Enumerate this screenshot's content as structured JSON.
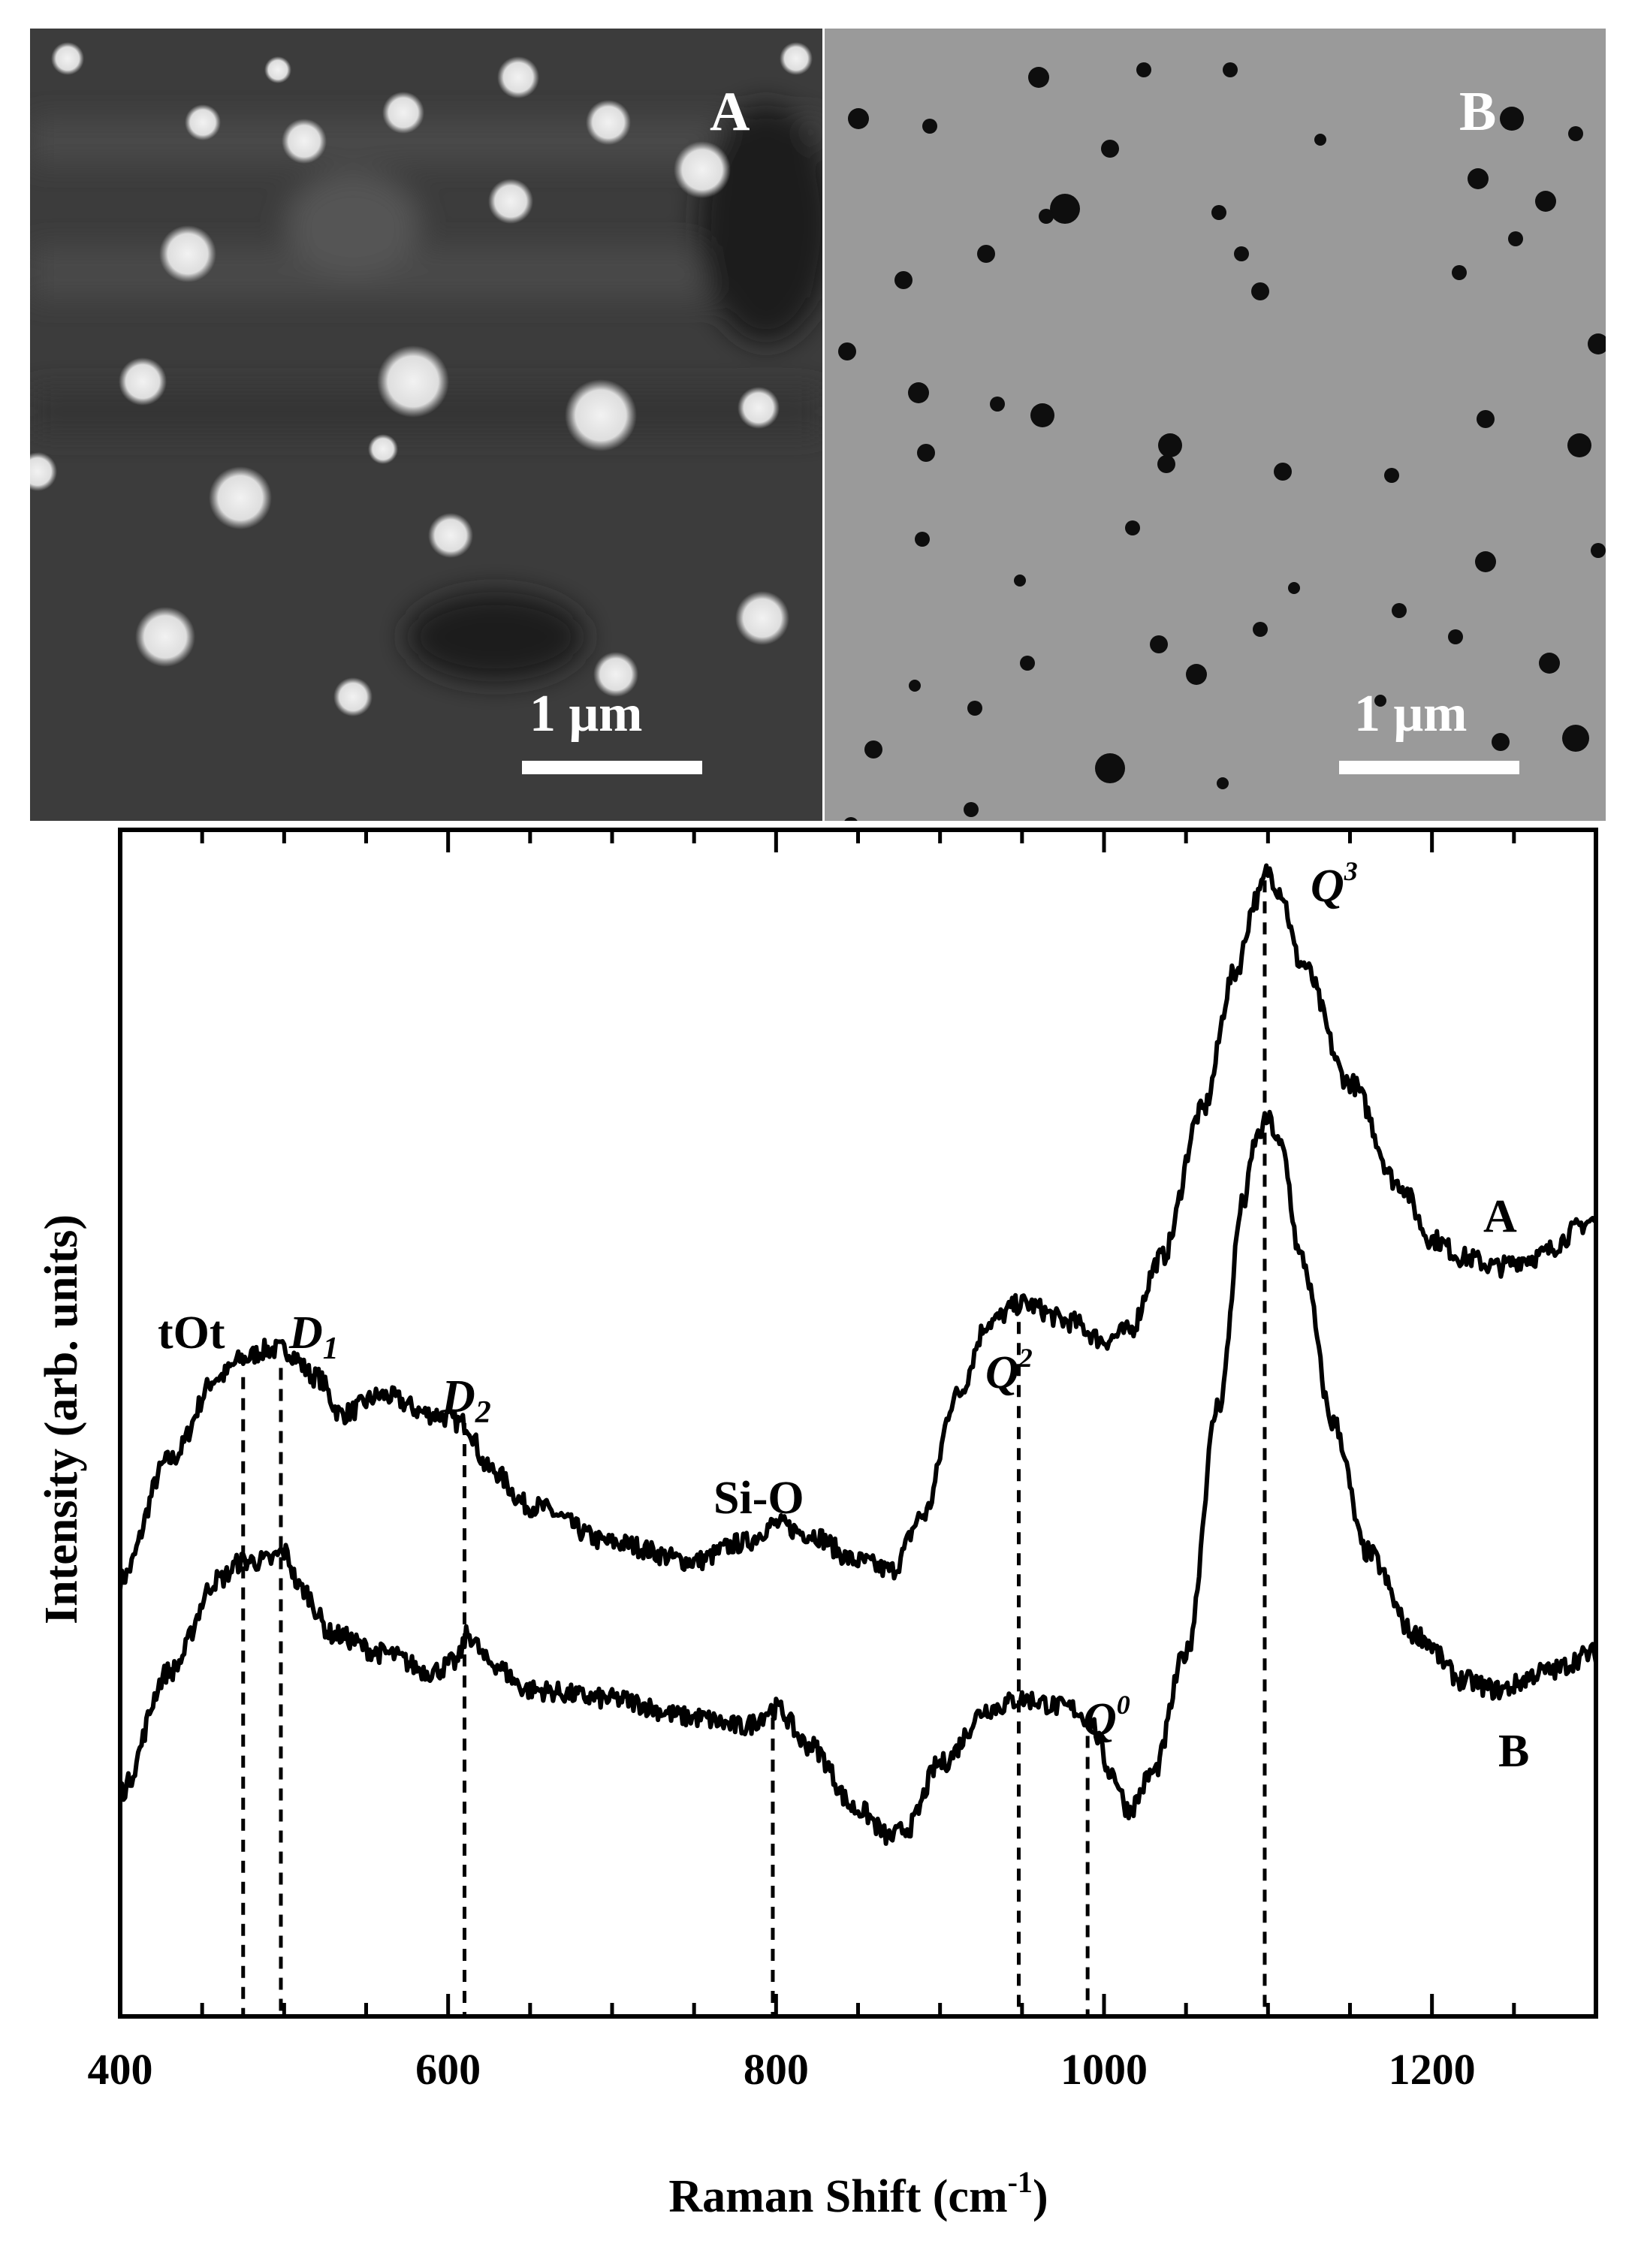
{
  "micrographs": [
    {
      "label": "A",
      "scale_bar": "1 μm",
      "contrast": "bright particles on dark background"
    },
    {
      "label": "B",
      "scale_bar": "1 μm",
      "contrast": "dark particles on light background"
    }
  ],
  "colors": {
    "panel_a_bg": "#3c3c3c",
    "panel_a_particle": "#e4e4e4",
    "panel_b_bg": "#9a9a9a",
    "panel_b_particle": "#0e0e0e",
    "line": "#000000"
  },
  "chart_data": {
    "type": "line",
    "xlabel": "Raman Shift (cm",
    "xlabel_sup": "-1",
    "xlabel_close": ")",
    "ylabel": "Intensity (arb. units)",
    "xlim": [
      400,
      1300
    ],
    "ylim": [
      0,
      1
    ],
    "x_ticks": [
      400,
      600,
      800,
      1000,
      1200
    ],
    "x_tick_labels": [
      "400",
      "600",
      "800",
      "1000",
      "1200"
    ],
    "grid": false,
    "series": [
      {
        "name": "A",
        "x": [
          400,
          430,
          460,
          475,
          490,
          500,
          520,
          535,
          560,
          590,
          610,
          625,
          650,
          700,
          750,
          780,
          800,
          820,
          850,
          870,
          890,
          910,
          930,
          950,
          980,
          1000,
          1015,
          1035,
          1060,
          1080,
          1093,
          1100,
          1107,
          1120,
          1150,
          1180,
          1200,
          1220,
          1240,
          1260,
          1300
        ],
        "y": [
          0.23,
          0.36,
          0.45,
          0.47,
          0.48,
          0.48,
          0.45,
          0.41,
          0.43,
          0.41,
          0.4,
          0.35,
          0.31,
          0.27,
          0.25,
          0.27,
          0.29,
          0.28,
          0.25,
          0.24,
          0.3,
          0.43,
          0.51,
          0.53,
          0.51,
          0.49,
          0.5,
          0.58,
          0.74,
          0.89,
          0.97,
          1.0,
          0.98,
          0.9,
          0.77,
          0.66,
          0.6,
          0.58,
          0.57,
          0.58,
          0.62
        ]
      },
      {
        "name": "B",
        "x": [
          400,
          430,
          460,
          475,
          490,
          500,
          510,
          530,
          560,
          590,
          605,
          612,
          625,
          650,
          700,
          750,
          780,
          800,
          820,
          850,
          870,
          880,
          900,
          930,
          950,
          980,
          990,
          1005,
          1015,
          1030,
          1050,
          1070,
          1085,
          1093,
          1100,
          1108,
          1120,
          1140,
          1160,
          1190,
          1220,
          1240,
          1270,
          1300
        ],
        "y": [
          0.0,
          0.13,
          0.23,
          0.25,
          0.25,
          0.26,
          0.22,
          0.17,
          0.15,
          0.13,
          0.14,
          0.17,
          0.14,
          0.11,
          0.1,
          0.08,
          0.07,
          0.09,
          0.05,
          -0.02,
          -0.05,
          -0.04,
          0.03,
          0.09,
          0.1,
          0.09,
          0.08,
          0.02,
          -0.02,
          0.02,
          0.15,
          0.42,
          0.64,
          0.71,
          0.73,
          0.7,
          0.58,
          0.4,
          0.26,
          0.17,
          0.12,
          0.11,
          0.13,
          0.15
        ]
      }
    ],
    "series_labels": [
      "A",
      "B"
    ],
    "reference_lines": [
      475,
      498,
      610,
      798,
      948,
      990,
      1098
    ],
    "annotations": [
      {
        "text": "tOt",
        "style": "bold"
      },
      {
        "text": "D",
        "sub": "1",
        "style": "italic"
      },
      {
        "text": "D",
        "sub": "2",
        "style": "italic"
      },
      {
        "text": "Si-O",
        "style": "bold"
      },
      {
        "text": "Q",
        "sup": "2",
        "style": "italic"
      },
      {
        "text": "Q",
        "sup": "0",
        "style": "italic"
      },
      {
        "text": "Q",
        "sup": "3",
        "style": "italic"
      }
    ]
  }
}
